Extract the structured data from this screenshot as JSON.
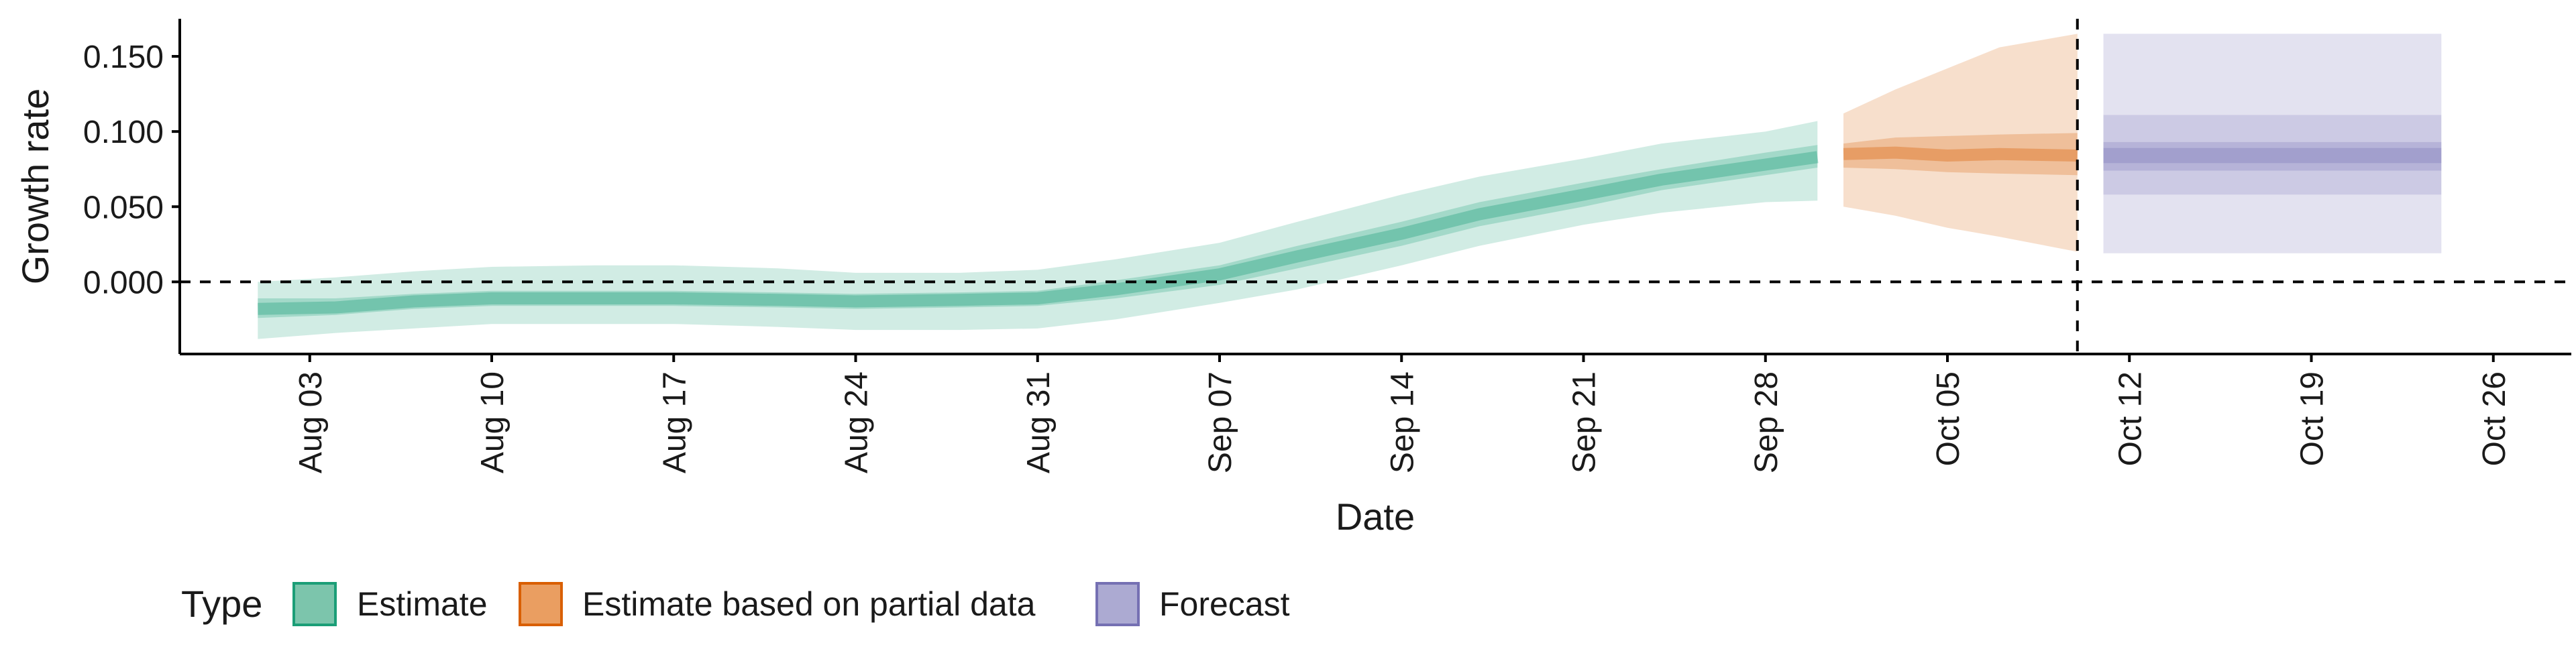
{
  "chart_data": {
    "type": "area",
    "xlabel": "Date",
    "ylabel": "Growth rate",
    "x_range": [
      "2021-07-29",
      "2021-10-29"
    ],
    "ylim": [
      -0.048,
      0.175
    ],
    "y_ticks": [
      0.0,
      0.05,
      0.1,
      0.15
    ],
    "y_tick_labels": [
      "0.000",
      "0.050",
      "0.100",
      "0.150"
    ],
    "x_ticks": [
      "2021-08-03",
      "2021-08-10",
      "2021-08-17",
      "2021-08-24",
      "2021-08-31",
      "2021-09-07",
      "2021-09-14",
      "2021-09-21",
      "2021-09-28",
      "2021-10-05",
      "2021-10-12",
      "2021-10-19",
      "2021-10-26"
    ],
    "x_tick_labels": [
      "Aug 03",
      "Aug 10",
      "Aug 17",
      "Aug 24",
      "Aug 31",
      "Sep 07",
      "Sep 14",
      "Sep 21",
      "Sep 28",
      "Oct 05",
      "Oct 12",
      "Oct 19",
      "Oct 26"
    ],
    "hline": 0.0,
    "vline": "2021-10-10",
    "grid": false,
    "legend": {
      "title": "Type",
      "position": "bottom-left"
    },
    "series": [
      {
        "name": "Estimate",
        "color": "#1b9e77",
        "x": [
          "2021-08-01",
          "2021-08-04",
          "2021-08-07",
          "2021-08-10",
          "2021-08-14",
          "2021-08-17",
          "2021-08-21",
          "2021-08-24",
          "2021-08-28",
          "2021-08-31",
          "2021-09-03",
          "2021-09-07",
          "2021-09-10",
          "2021-09-14",
          "2021-09-17",
          "2021-09-21",
          "2021-09-24",
          "2021-09-28",
          "2021-09-30"
        ],
        "median": [
          -0.018,
          -0.017,
          -0.013,
          -0.011,
          -0.011,
          -0.011,
          -0.012,
          -0.013,
          -0.012,
          -0.011,
          -0.005,
          0.005,
          0.017,
          0.032,
          0.045,
          0.058,
          0.068,
          0.078,
          0.083
        ],
        "lower50": [
          -0.024,
          -0.022,
          -0.018,
          -0.016,
          -0.016,
          -0.016,
          -0.017,
          -0.018,
          -0.017,
          -0.016,
          -0.011,
          -0.002,
          0.009,
          0.024,
          0.037,
          0.05,
          0.061,
          0.071,
          0.076
        ],
        "upper50": [
          -0.011,
          -0.011,
          -0.008,
          -0.006,
          -0.006,
          -0.006,
          -0.007,
          -0.008,
          -0.007,
          -0.006,
          0.001,
          0.011,
          0.024,
          0.04,
          0.053,
          0.066,
          0.075,
          0.086,
          0.091
        ],
        "lower90": [
          -0.038,
          -0.034,
          -0.031,
          -0.028,
          -0.028,
          -0.028,
          -0.03,
          -0.032,
          -0.032,
          -0.031,
          -0.025,
          -0.014,
          -0.005,
          0.011,
          0.024,
          0.038,
          0.046,
          0.053,
          0.054
        ],
        "upper90": [
          0.0,
          0.003,
          0.007,
          0.01,
          0.011,
          0.011,
          0.009,
          0.006,
          0.006,
          0.008,
          0.015,
          0.026,
          0.04,
          0.058,
          0.07,
          0.082,
          0.092,
          0.1,
          0.107
        ]
      },
      {
        "name": "Estimate based on partial data",
        "color": "#d95f02",
        "x": [
          "2021-10-01",
          "2021-10-03",
          "2021-10-05",
          "2021-10-07",
          "2021-10-10"
        ],
        "median": [
          0.085,
          0.086,
          0.084,
          0.085,
          0.084
        ],
        "lower50": [
          0.076,
          0.075,
          0.073,
          0.072,
          0.071
        ],
        "upper50": [
          0.092,
          0.096,
          0.097,
          0.098,
          0.099
        ],
        "lower90": [
          0.05,
          0.044,
          0.036,
          0.03,
          0.02
        ],
        "upper90": [
          0.112,
          0.128,
          0.142,
          0.156,
          0.165
        ]
      },
      {
        "name": "Forecast",
        "color": "#7570b3",
        "x": [
          "2021-10-11",
          "2021-10-24"
        ],
        "median": [
          0.084,
          0.084
        ],
        "lower50": [
          0.074,
          0.074
        ],
        "upper50": [
          0.093,
          0.093
        ],
        "lower90": [
          0.058,
          0.058
        ],
        "upper90": [
          0.111,
          0.111
        ],
        "lower_outer": [
          0.019,
          0.019
        ],
        "upper_outer": [
          0.165,
          0.165
        ]
      }
    ]
  }
}
